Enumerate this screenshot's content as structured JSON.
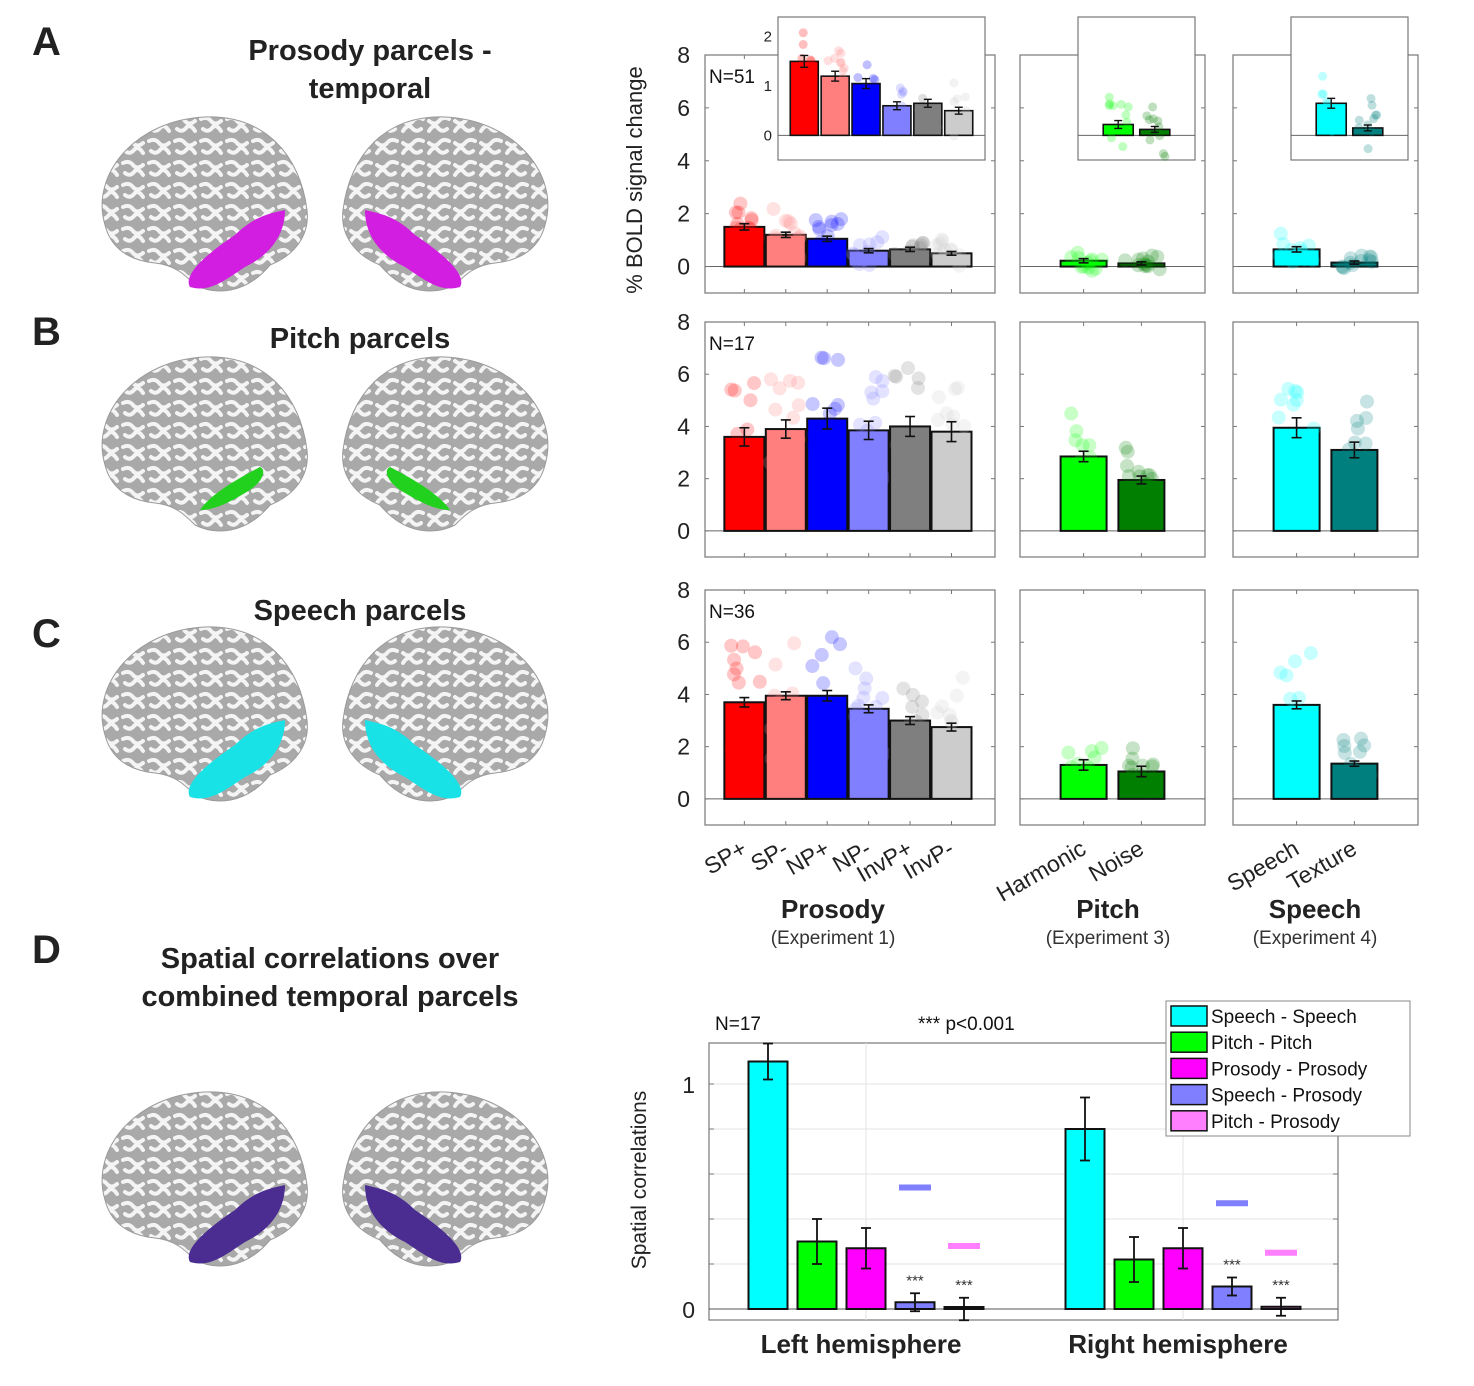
{
  "panels": {
    "A": {
      "letter": "A",
      "title_line1": "Prosody parcels -",
      "title_line2": "temporal",
      "parcel_color": "#d21ee0"
    },
    "B": {
      "letter": "B",
      "title_line1": "Pitch parcels",
      "parcel_color": "#22d11e"
    },
    "C": {
      "letter": "C",
      "title_line1": "Speech parcels",
      "parcel_color": "#19e2e6"
    },
    "D": {
      "letter": "D",
      "title_line1": "Spatial correlations over",
      "title_line2": "combined temporal parcels",
      "parcel_color": "#4b2d91"
    }
  },
  "chart_data": [
    {
      "type": "bar",
      "id": "bold-grid",
      "ylabel": "% BOLD signal change",
      "ylim": [
        -1,
        8
      ],
      "yticks": [
        0,
        2,
        4,
        6,
        8
      ],
      "groups": [
        {
          "name": "Prosody",
          "subtitle": "(Experiment 1)",
          "categories": [
            "SP+",
            "SP-",
            "NP+",
            "NP-",
            "InvP+",
            "InvP-"
          ],
          "colors": [
            "#ff0000",
            "#ff7f7f",
            "#0000ff",
            "#7f7fff",
            "#7f7f7f",
            "#cccccc"
          ]
        },
        {
          "name": "Pitch",
          "subtitle": "(Experiment 3)",
          "categories": [
            "Harmonic",
            "Noise"
          ],
          "colors": [
            "#00ff00",
            "#007f00"
          ]
        },
        {
          "name": "Speech",
          "subtitle": "(Experiment 4)",
          "categories": [
            "Speech",
            "Texture"
          ],
          "colors": [
            "#00ffff",
            "#007f7f"
          ]
        }
      ],
      "rows": [
        {
          "label": "Prosody parcels - temporal",
          "n_label": "N=51",
          "values": [
            [
              1.5,
              1.2,
              1.05,
              0.6,
              0.65,
              0.5
            ],
            [
              0.22,
              0.12
            ],
            [
              0.65,
              0.15
            ]
          ],
          "errors": [
            [
              0.12,
              0.1,
              0.1,
              0.08,
              0.08,
              0.07
            ],
            [
              0.08,
              0.06
            ],
            [
              0.1,
              0.06
            ]
          ],
          "inset": {
            "ylim": [
              -0.5,
              2.4
            ],
            "yticks": [
              0,
              1,
              2
            ]
          }
        },
        {
          "label": "Pitch parcels",
          "n_label": "N=17",
          "values": [
            [
              3.6,
              3.9,
              4.3,
              3.85,
              4.0,
              3.8
            ],
            [
              2.85,
              1.95
            ],
            [
              3.95,
              3.1
            ]
          ],
          "errors": [
            [
              0.35,
              0.35,
              0.4,
              0.35,
              0.38,
              0.38
            ],
            [
              0.2,
              0.15
            ],
            [
              0.38,
              0.3
            ]
          ]
        },
        {
          "label": "Speech parcels",
          "n_label": "N=36",
          "values": [
            [
              3.7,
              3.95,
              3.95,
              3.45,
              3.0,
              2.75
            ],
            [
              1.3,
              1.05
            ],
            [
              3.6,
              1.35
            ]
          ],
          "errors": [
            [
              0.18,
              0.15,
              0.2,
              0.15,
              0.15,
              0.15
            ],
            [
              0.2,
              0.2
            ],
            [
              0.15,
              0.1
            ]
          ]
        }
      ]
    },
    {
      "type": "bar",
      "id": "spatial-correlations",
      "ylabel": "Spatial correlations",
      "ylim": [
        -0.05,
        1.18
      ],
      "yticks": [
        0,
        1
      ],
      "ygrid_step": 0.2,
      "n_label": "N=17",
      "annotation": "*** p<0.001",
      "significance_mark": "***",
      "categories": [
        "Left hemisphere",
        "Right hemisphere"
      ],
      "legend": {
        "position": "top-right"
      },
      "series": [
        {
          "name": "Speech - Speech",
          "color": "#00ffff",
          "values": [
            1.1,
            0.8
          ],
          "errors": [
            0.08,
            0.14
          ],
          "null_level": [
            null,
            null
          ],
          "significant": [
            false,
            false
          ]
        },
        {
          "name": "Pitch - Pitch",
          "color": "#00ff00",
          "values": [
            0.3,
            0.22
          ],
          "errors": [
            0.1,
            0.1
          ],
          "null_level": [
            null,
            null
          ],
          "significant": [
            false,
            false
          ]
        },
        {
          "name": "Prosody - Prosody",
          "color": "#ff00ff",
          "values": [
            0.27,
            0.27
          ],
          "errors": [
            0.09,
            0.09
          ],
          "null_level": [
            null,
            null
          ],
          "significant": [
            false,
            false
          ]
        },
        {
          "name": "Speech - Prosody",
          "color": "#7f7fff",
          "values": [
            0.03,
            0.1
          ],
          "errors": [
            0.04,
            0.04
          ],
          "null_level": [
            0.54,
            0.47
          ],
          "significant": [
            true,
            true
          ]
        },
        {
          "name": "Pitch - Prosody",
          "color": "#ff7fff",
          "values": [
            0.0,
            0.01
          ],
          "errors": [
            0.05,
            0.04
          ],
          "null_level": [
            0.28,
            0.25
          ],
          "significant": [
            true,
            true
          ]
        }
      ]
    }
  ]
}
